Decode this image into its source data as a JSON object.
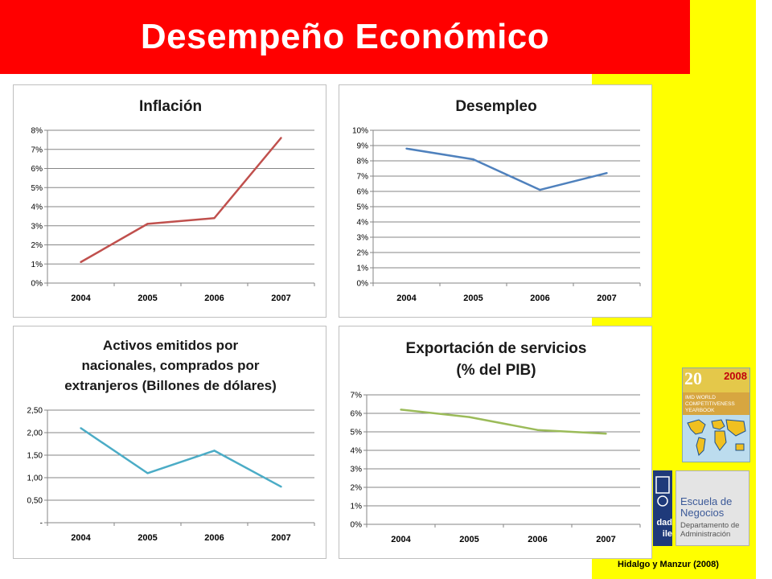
{
  "header": {
    "title": "Desempeño Económico"
  },
  "source_note": "Hidalgo y Manzur (2008)",
  "colors": {
    "title_bar": "#ff0000",
    "sidebar": "#ffff00"
  },
  "yearbook": {
    "number": "20",
    "year": "2008",
    "lines": [
      "IMD WORLD",
      "COMPETITIVENESS",
      "YEARBOOK"
    ]
  },
  "logo": {
    "crest_text": [
      "dad",
      "ile"
    ],
    "escuela_lines": [
      "Escuela de",
      "Negocios"
    ],
    "dept_lines": [
      "Departamento de",
      "Administración"
    ]
  },
  "chart_data": [
    {
      "type": "line",
      "title": [
        "Inflación"
      ],
      "categories": [
        "2004",
        "2005",
        "2006",
        "2007"
      ],
      "values": [
        1.1,
        3.1,
        3.4,
        7.6
      ],
      "ylim": [
        0,
        8
      ],
      "yticks": [
        "0%",
        "1%",
        "2%",
        "3%",
        "4%",
        "5%",
        "6%",
        "7%",
        "8%"
      ],
      "color": "#c0504d",
      "grid": true
    },
    {
      "type": "line",
      "title": [
        "Desempleo"
      ],
      "categories": [
        "2004",
        "2005",
        "2006",
        "2007"
      ],
      "values": [
        8.8,
        8.1,
        6.1,
        7.2
      ],
      "ylim": [
        0,
        10
      ],
      "yticks": [
        "0%",
        "1%",
        "2%",
        "3%",
        "4%",
        "5%",
        "6%",
        "7%",
        "8%",
        "9%",
        "10%"
      ],
      "color": "#4f81bd",
      "grid": true
    },
    {
      "type": "line",
      "title": [
        "Activos emitidos por",
        "nacionales, comprados por",
        "extranjeros (Billones de dólares)"
      ],
      "categories": [
        "2004",
        "2005",
        "2006",
        "2007"
      ],
      "values": [
        2.1,
        1.1,
        1.6,
        0.8
      ],
      "ylim": [
        0,
        2.5
      ],
      "yticks": [
        "-",
        "0,50",
        "1,00",
        "1,50",
        "2,00",
        "2,50"
      ],
      "color": "#4bacc6",
      "grid": true
    },
    {
      "type": "line",
      "title": [
        "Exportación de servicios",
        "(% del PIB)"
      ],
      "categories": [
        "2004",
        "2005",
        "2006",
        "2007"
      ],
      "values": [
        6.2,
        5.8,
        5.1,
        4.9
      ],
      "ylim": [
        0,
        7
      ],
      "yticks": [
        "0%",
        "1%",
        "2%",
        "3%",
        "4%",
        "5%",
        "6%",
        "7%"
      ],
      "color": "#9bbb59",
      "grid": true
    }
  ]
}
